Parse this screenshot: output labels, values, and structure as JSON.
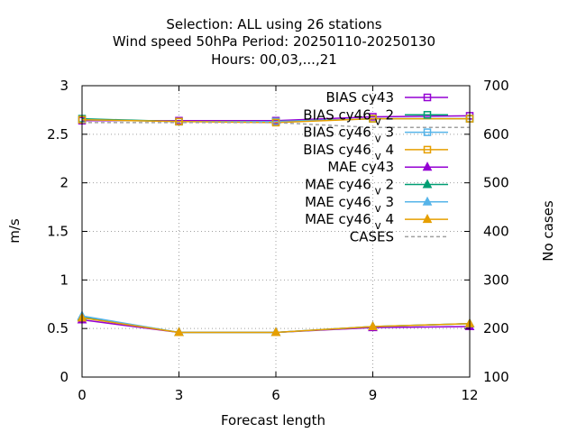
{
  "chart_data": {
    "type": "line",
    "title_lines": [
      "Selection: ALL using    26 stations",
      "Wind speed 50hPa   Period: 20250110-20250130",
      "Hours:  00,03,...,21"
    ],
    "xlabel": "Forecast length",
    "ylabel": "m/s",
    "y2label": "No cases",
    "x": [
      0,
      3,
      6,
      9,
      12
    ],
    "xlim": [
      0,
      12
    ],
    "ylim": [
      0,
      3
    ],
    "y2lim": [
      100,
      700
    ],
    "x_ticks": [
      "0",
      "3",
      "6",
      "9",
      "12"
    ],
    "y_ticks": [
      "0",
      "0.5",
      "1",
      "1.5",
      "2",
      "2.5",
      "3"
    ],
    "y2_ticks": [
      "100",
      "200",
      "300",
      "400",
      "500",
      "600",
      "700"
    ],
    "grid": true,
    "legend_position": "top-right",
    "series": [
      {
        "name": "BIAS cy43",
        "name_base": "BIAS cy43",
        "name_sub": "",
        "name_tail": "",
        "metric": "bias",
        "color": "#9400d3",
        "marker": "square",
        "dash": "solid",
        "values": [
          2.64,
          2.64,
          2.64,
          2.68,
          2.69
        ]
      },
      {
        "name": "BIAS cy46_v_2",
        "name_base": "BIAS cy46",
        "name_sub": "v",
        "name_tail": "2",
        "metric": "bias",
        "color": "#009e73",
        "marker": "square",
        "dash": "solid",
        "values": [
          2.66,
          2.63,
          2.63,
          2.66,
          2.66
        ]
      },
      {
        "name": "BIAS cy46_v_3",
        "name_base": "BIAS cy46",
        "name_sub": "v",
        "name_tail": "3",
        "metric": "bias",
        "color": "#56b4e9",
        "marker": "square",
        "dash": "solid",
        "values": [
          2.65,
          2.63,
          2.63,
          2.66,
          2.66
        ]
      },
      {
        "name": "BIAS cy46_v_4",
        "name_base": "BIAS cy46",
        "name_sub": "v",
        "name_tail": "4",
        "metric": "bias",
        "color": "#e69f00",
        "marker": "square",
        "dash": "solid",
        "values": [
          2.65,
          2.63,
          2.62,
          2.66,
          2.66
        ]
      },
      {
        "name": "MAE cy43",
        "name_base": "MAE cy43",
        "name_sub": "",
        "name_tail": "",
        "metric": "mae",
        "color": "#9400d3",
        "marker": "triangle",
        "dash": "solid",
        "values": [
          0.59,
          0.46,
          0.46,
          0.51,
          0.52
        ]
      },
      {
        "name": "MAE cy46_v_2",
        "name_base": "MAE cy46",
        "name_sub": "v",
        "name_tail": "2",
        "metric": "mae",
        "color": "#009e73",
        "marker": "triangle",
        "dash": "solid",
        "values": [
          0.62,
          0.46,
          0.46,
          0.52,
          0.55
        ]
      },
      {
        "name": "MAE cy46_v_3",
        "name_base": "MAE cy46",
        "name_sub": "v",
        "name_tail": "3",
        "metric": "mae",
        "color": "#56b4e9",
        "marker": "triangle",
        "dash": "solid",
        "values": [
          0.63,
          0.46,
          0.46,
          0.52,
          0.55
        ]
      },
      {
        "name": "MAE cy46_v_4",
        "name_base": "MAE cy46",
        "name_sub": "v",
        "name_tail": "4",
        "metric": "mae",
        "color": "#e69f00",
        "marker": "triangle",
        "dash": "solid",
        "values": [
          0.61,
          0.46,
          0.46,
          0.52,
          0.55
        ]
      },
      {
        "name": "CASES",
        "name_base": "CASES",
        "name_sub": "",
        "name_tail": "",
        "metric": "cases",
        "axis": "y2",
        "color": "#a0a0a0",
        "marker": "none",
        "dash": "dashed",
        "values": [
          624,
          624,
          624,
          614,
          614
        ]
      }
    ]
  }
}
